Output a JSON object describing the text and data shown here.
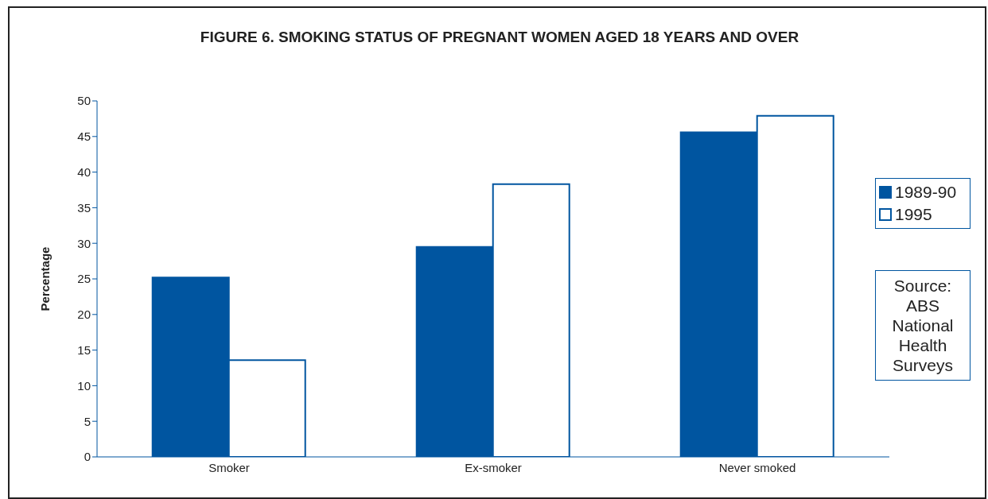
{
  "chart_data": {
    "type": "bar",
    "title": "FIGURE 6. SMOKING STATUS OF PREGNANT WOMEN AGED 18 YEARS AND OVER",
    "ylabel": "Percentage",
    "categories": [
      "Smoker",
      "Ex-smoker",
      "Never smoked"
    ],
    "series": [
      {
        "name": "1989-90",
        "color": "#0055a0",
        "values": [
          25.2,
          29.5,
          45.6
        ]
      },
      {
        "name": "1995",
        "color": "#ffffff",
        "values": [
          13.6,
          38.3,
          47.9
        ]
      }
    ],
    "ylim": [
      0,
      50
    ],
    "yticks": [
      0,
      5,
      10,
      15,
      20,
      25,
      30,
      35,
      40,
      45,
      50
    ],
    "legend": "right",
    "annotations": [
      "Source: ABS National Health Surveys"
    ]
  }
}
